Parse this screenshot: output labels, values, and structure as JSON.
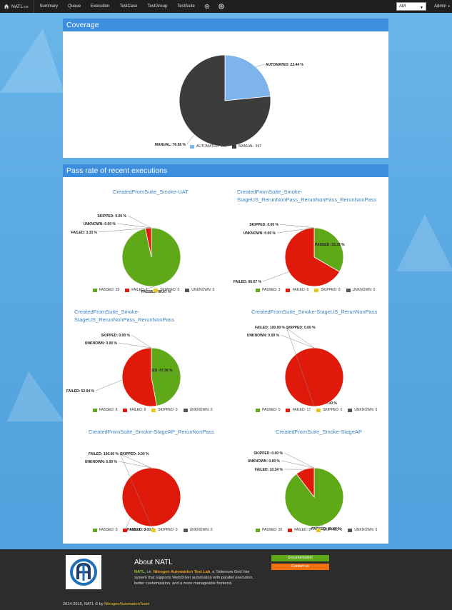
{
  "nav": {
    "brand": "NATL",
    "version": "0.9",
    "items": [
      "Summary",
      "Queue",
      "Execution",
      "TestCase",
      "TestGroup",
      "TestSuite"
    ],
    "select_value": "AM",
    "user": "Admin"
  },
  "coverage": {
    "title": "Coverage",
    "labels": [
      "AUTOMATED: 23.44 %",
      "MANUAL: 76.56 %"
    ],
    "legend": [
      "AUTOMATED: 143",
      "MANUAL: 467"
    ]
  },
  "pass_rate": {
    "title": "Pass rate of recent executions",
    "charts": [
      {
        "title_lines": [
          "CreatedFromSuite_Smoke-UAT"
        ],
        "labels": [
          "PASSED: 96.67 %",
          "FAILED: 3.33 %",
          "SKIPPED: 0.00 %",
          "UNKNOWN: 0.00 %"
        ],
        "legend": [
          "PASSED: 29",
          "FAILED: 1",
          "SKIPPED: 0",
          "UNKNOWN: 0"
        ]
      },
      {
        "title_lines": [
          "CreatedFromSuite_Smoke-",
          "StageUS_RerunNonPass_RerunNonPass_RerunNonPass"
        ],
        "labels": [
          "PASSED: 33.33 %",
          "FAILED: 66.67 %",
          "SKIPPED: 0.00 %",
          "UNKNOWN: 0.00 %"
        ],
        "legend": [
          "PASSED: 3",
          "FAILED: 6",
          "SKIPPED: 0",
          "UNKNOWN: 0"
        ]
      },
      {
        "title_lines": [
          "CreatedFromSuite_Smoke-",
          "StageUS_RerunNonPass_RerunNonPass"
        ],
        "labels": [
          "PASSED: 47.06 %",
          "FAILED: 52.94 %",
          "SKIPPED: 0.00 %",
          "UNKNOWN: 0.00 %"
        ],
        "legend": [
          "PASSED: 8",
          "FAILED: 9",
          "SKIPPED: 0",
          "UNKNOWN: 0"
        ]
      },
      {
        "title_lines": [
          "CreatedFromSuite_Smoke-StageUS_RerunNonPass"
        ],
        "labels": [
          "PASSED: 0.00 %",
          "FAILED: 100.00 %",
          "SKIPPED: 0.00 %",
          "UNKNOWN: 0.00 %"
        ],
        "legend": [
          "PASSED: 0",
          "FAILED: 17",
          "SKIPPED: 0",
          "UNKNOWN: 0"
        ]
      },
      {
        "title_lines": [
          "CreatedFromSuite_Smoke-StageAP_RerunNonPass"
        ],
        "labels": [
          "PASSED: 0.00 %",
          "FAILED: 100.00 %",
          "SKIPPED: 0.00 %",
          "UNKNOWN: 0.00 %"
        ],
        "legend": [
          "PASSED: 0",
          "FAILED: 3",
          "SKIPPED: 0",
          "UNKNOWN: 0"
        ]
      },
      {
        "title_lines": [
          "CreatedFromSuite_Smoke-StageAP"
        ],
        "labels": [
          "PASSED: 89.66 %",
          "FAILED: 10.34 %",
          "SKIPPED: 0.00 %",
          "UNKNOWN: 0.00 %"
        ],
        "legend": [
          "PASSED: 26",
          "FAILED: 3",
          "SKIPPED: 0",
          "UNKNOWN: 0"
        ]
      }
    ]
  },
  "colors": {
    "automated": "#7db4ea",
    "manual": "#3c3c3c",
    "passed": "#5fa817",
    "failed": "#e01a0a",
    "skipped": "#e8c81a",
    "unknown": "#555555"
  },
  "chart_data": [
    {
      "type": "pie",
      "title": "Coverage",
      "categories": [
        "AUTOMATED",
        "MANUAL"
      ],
      "values": [
        143,
        467
      ],
      "percent": [
        23.44,
        76.56
      ],
      "legend": "bottom"
    },
    {
      "type": "pie",
      "title": "CreatedFromSuite_Smoke-UAT",
      "categories": [
        "PASSED",
        "FAILED",
        "SKIPPED",
        "UNKNOWN"
      ],
      "values": [
        29,
        1,
        0,
        0
      ],
      "percent": [
        96.67,
        3.33,
        0.0,
        0.0
      ],
      "legend": "bottom"
    },
    {
      "type": "pie",
      "title": "CreatedFromSuite_Smoke-StageUS_RerunNonPass_RerunNonPass_RerunNonPass",
      "categories": [
        "PASSED",
        "FAILED",
        "SKIPPED",
        "UNKNOWN"
      ],
      "values": [
        3,
        6,
        0,
        0
      ],
      "percent": [
        33.33,
        66.67,
        0.0,
        0.0
      ],
      "legend": "bottom"
    },
    {
      "type": "pie",
      "title": "CreatedFromSuite_Smoke-StageUS_RerunNonPass_RerunNonPass",
      "categories": [
        "PASSED",
        "FAILED",
        "SKIPPED",
        "UNKNOWN"
      ],
      "values": [
        8,
        9,
        0,
        0
      ],
      "percent": [
        47.06,
        52.94,
        0.0,
        0.0
      ],
      "legend": "bottom"
    },
    {
      "type": "pie",
      "title": "CreatedFromSuite_Smoke-StageUS_RerunNonPass",
      "categories": [
        "PASSED",
        "FAILED",
        "SKIPPED",
        "UNKNOWN"
      ],
      "values": [
        0,
        17,
        0,
        0
      ],
      "percent": [
        0.0,
        100.0,
        0.0,
        0.0
      ],
      "legend": "bottom"
    },
    {
      "type": "pie",
      "title": "CreatedFromSuite_Smoke-StageAP_RerunNonPass",
      "categories": [
        "PASSED",
        "FAILED",
        "SKIPPED",
        "UNKNOWN"
      ],
      "values": [
        0,
        3,
        0,
        0
      ],
      "percent": [
        0.0,
        100.0,
        0.0,
        0.0
      ],
      "legend": "bottom"
    },
    {
      "type": "pie",
      "title": "CreatedFromSuite_Smoke-StageAP",
      "categories": [
        "PASSED",
        "FAILED",
        "SKIPPED",
        "UNKNOWN"
      ],
      "values": [
        26,
        3,
        0,
        0
      ],
      "percent": [
        89.66,
        10.34,
        0.0,
        0.0
      ],
      "legend": "bottom"
    }
  ],
  "footer": {
    "about_title": "About NATL",
    "about_prefix": "NATL",
    "about_ie": ", i.e. ",
    "about_name": "Nitrogen Automation Test Lab",
    "about_rest": ", a 'Selenium Grid' like system that supports WebDriver automation with parallel execution, better customization, and a more manageable frontend.",
    "documentation_label": "Documentation",
    "contact_label": "Contact us",
    "copyright_prefix": "2014-2015, NATL © by ",
    "copyright_team": "NitrogenAutomationTeam",
    "documentation_color": "#5fa817",
    "contact_color": "#f07010"
  }
}
